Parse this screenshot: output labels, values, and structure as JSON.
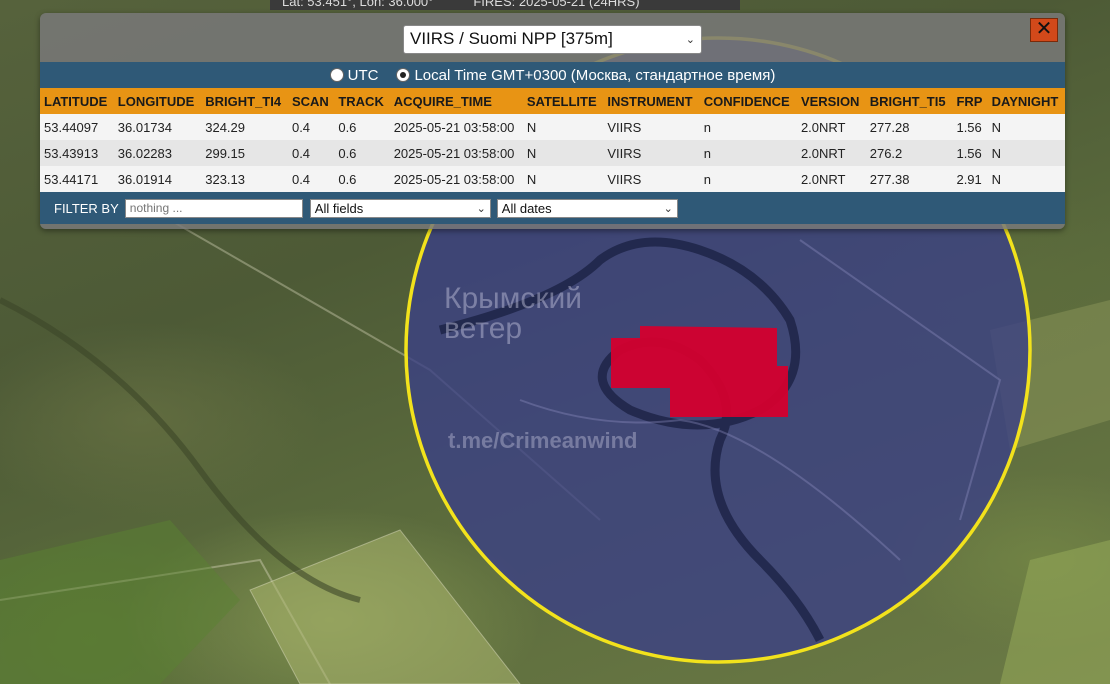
{
  "status_strip": {
    "coords": "Lat: 53.451°, Lon: 36.000°",
    "fires": "FIRES: 2025-05-21 (24HRS)"
  },
  "panel": {
    "product_select": "VIIRS / Suomi NPP [375m]",
    "close_label": "✕",
    "time_options": {
      "utc": "UTC",
      "local": "Local Time GMT+0300 (Москва, стандартное время)",
      "selected": "local"
    },
    "columns": [
      "LATITUDE",
      "LONGITUDE",
      "BRIGHT_TI4",
      "SCAN",
      "TRACK",
      "ACQUIRE_TIME",
      "SATELLITE",
      "INSTRUMENT",
      "CONFIDENCE",
      "VERSION",
      "BRIGHT_TI5",
      "FRP",
      "DAYNIGHT"
    ],
    "rows": [
      [
        "53.44097",
        "36.01734",
        "324.29",
        "0.4",
        "0.6",
        "2025-05-21 03:58:00",
        "N",
        "VIIRS",
        "n",
        "2.0NRT",
        "277.28",
        "1.56",
        "N"
      ],
      [
        "53.43913",
        "36.02283",
        "299.15",
        "0.4",
        "0.6",
        "2025-05-21 03:58:00",
        "N",
        "VIIRS",
        "n",
        "2.0NRT",
        "276.2",
        "1.56",
        "N"
      ],
      [
        "53.44171",
        "36.01914",
        "323.13",
        "0.4",
        "0.6",
        "2025-05-21 03:58:00",
        "N",
        "VIIRS",
        "n",
        "2.0NRT",
        "277.38",
        "2.91",
        "N"
      ]
    ],
    "filter": {
      "label": "FILTER BY",
      "placeholder": "nothing ...",
      "fields_select": "All fields",
      "dates_select": "All dates"
    }
  },
  "map": {
    "watermark_title": "Крымский ветер",
    "watermark_handle": "t.me/Crimeanwind",
    "colors": {
      "circle": "#f2e21c",
      "fire": "#d4002e",
      "circle_fill": "#3a3f86"
    }
  }
}
